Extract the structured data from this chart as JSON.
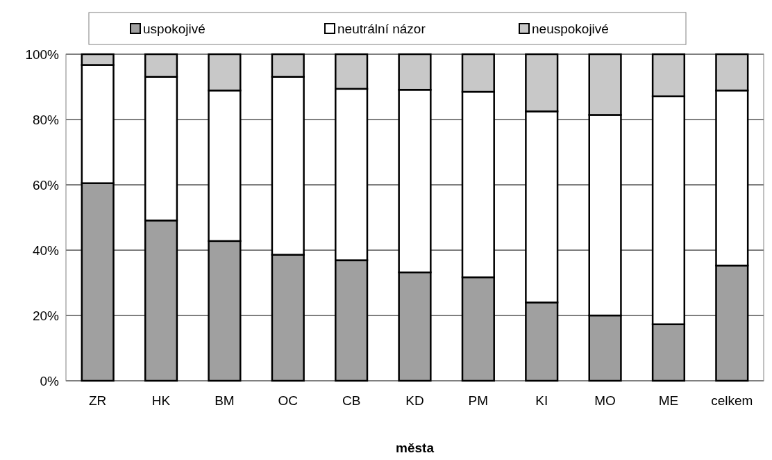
{
  "chart_data": {
    "type": "bar",
    "stacked": true,
    "xlabel": "města",
    "categories": [
      "ZR",
      "HK",
      "BM",
      "OC",
      "CB",
      "KD",
      "PM",
      "KI",
      "MO",
      "ME",
      "celkem"
    ],
    "series": [
      {
        "name": "uspokojivé",
        "color": "#a0a0a0",
        "values": [
          60.5,
          49.1,
          42.8,
          38.6,
          36.9,
          33.2,
          31.7,
          24.0,
          20.0,
          17.3,
          35.3
        ]
      },
      {
        "name": "neutrální názor",
        "color": "#ffffff",
        "values": [
          36.2,
          44.0,
          46.1,
          54.5,
          52.5,
          55.9,
          56.8,
          58.5,
          61.4,
          69.8,
          53.6
        ]
      },
      {
        "name": "neuspokojivé",
        "color": "#c8c8c8",
        "values": [
          3.3,
          6.9,
          11.1,
          6.9,
          10.6,
          10.9,
          11.5,
          17.5,
          18.6,
          12.9,
          11.1
        ]
      }
    ],
    "ylim": [
      0,
      100
    ],
    "yticks": [
      {
        "value": 0,
        "label": "0%"
      },
      {
        "value": 20,
        "label": "20%"
      },
      {
        "value": 40,
        "label": "40%"
      },
      {
        "value": 60,
        "label": "60%"
      },
      {
        "value": 80,
        "label": "80%"
      },
      {
        "value": 100,
        "label": "100%"
      }
    ],
    "grid": "y",
    "legend": "top"
  }
}
